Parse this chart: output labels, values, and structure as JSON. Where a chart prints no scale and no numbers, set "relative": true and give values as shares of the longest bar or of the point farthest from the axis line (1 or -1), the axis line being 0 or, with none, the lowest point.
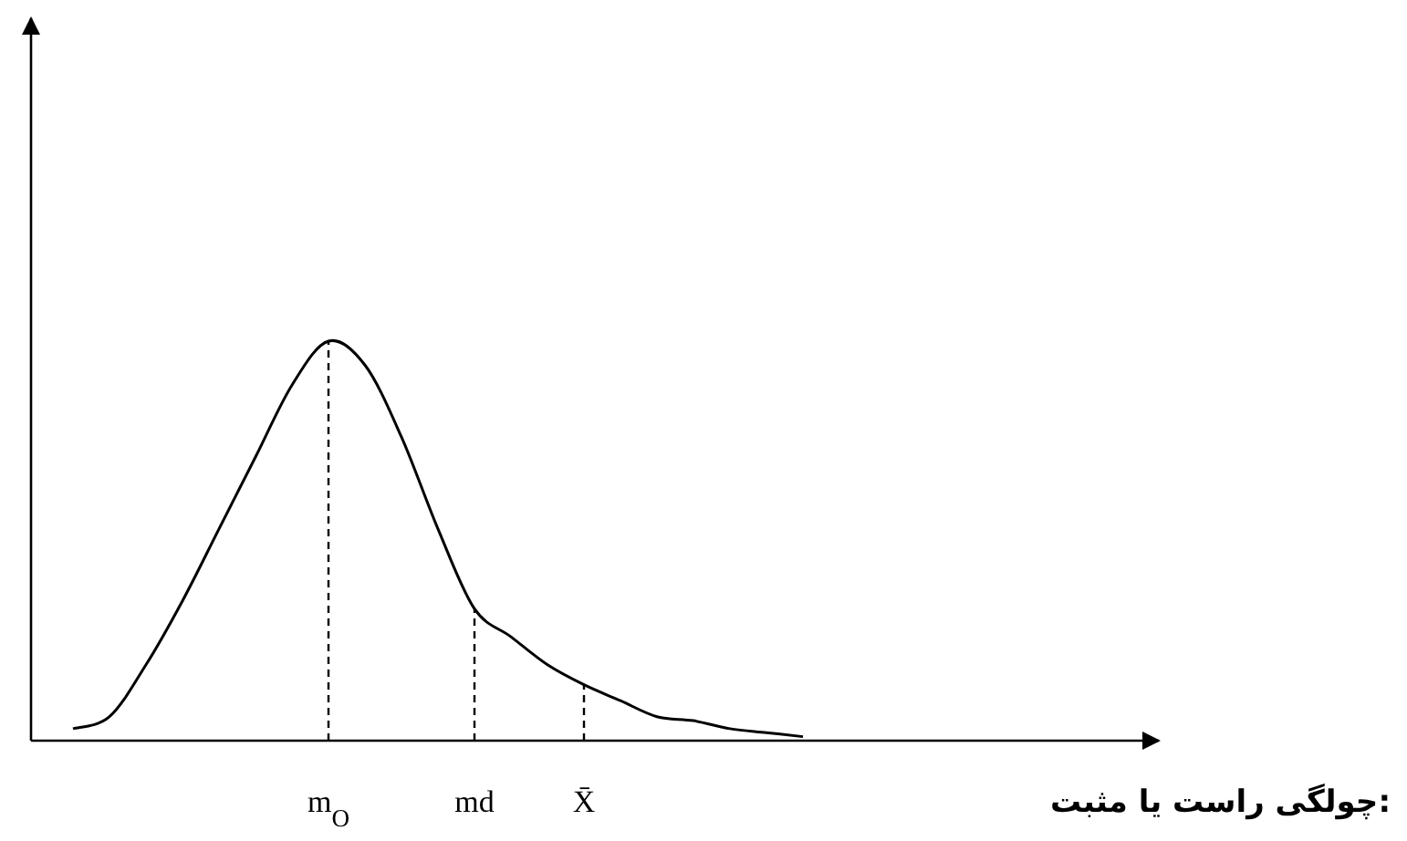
{
  "chart_data": {
    "type": "line",
    "relative": true,
    "marker": "none",
    "title": "چولگی راست یا مثبت:",
    "categories": [
      null,
      null,
      null,
      null,
      null,
      null,
      null,
      "m$_{O}$",
      null,
      null,
      null,
      "md",
      null,
      null,
      "X̄",
      null,
      null,
      null,
      null,
      null,
      null
    ],
    "series": [
      {
        "color": "#000000",
        "values": [
          0.03,
          0.06,
          0.19,
          0.35,
          0.53,
          0.71,
          0.89,
          1.0,
          0.94,
          0.76,
          0.53,
          0.33,
          0.26,
          0.19,
          0.14,
          0.1,
          0.06,
          0.05,
          0.03,
          0.02,
          0.01
        ]
      }
    ],
    "ref_lines": [
      {
        "axis": "x",
        "value": "m$_{O}$",
        "line_style": "dashed"
      },
      {
        "axis": "x",
        "value": "md",
        "line_style": "dashed"
      },
      {
        "axis": "x",
        "value": "X̄",
        "line_style": "dashed"
      }
    ]
  }
}
